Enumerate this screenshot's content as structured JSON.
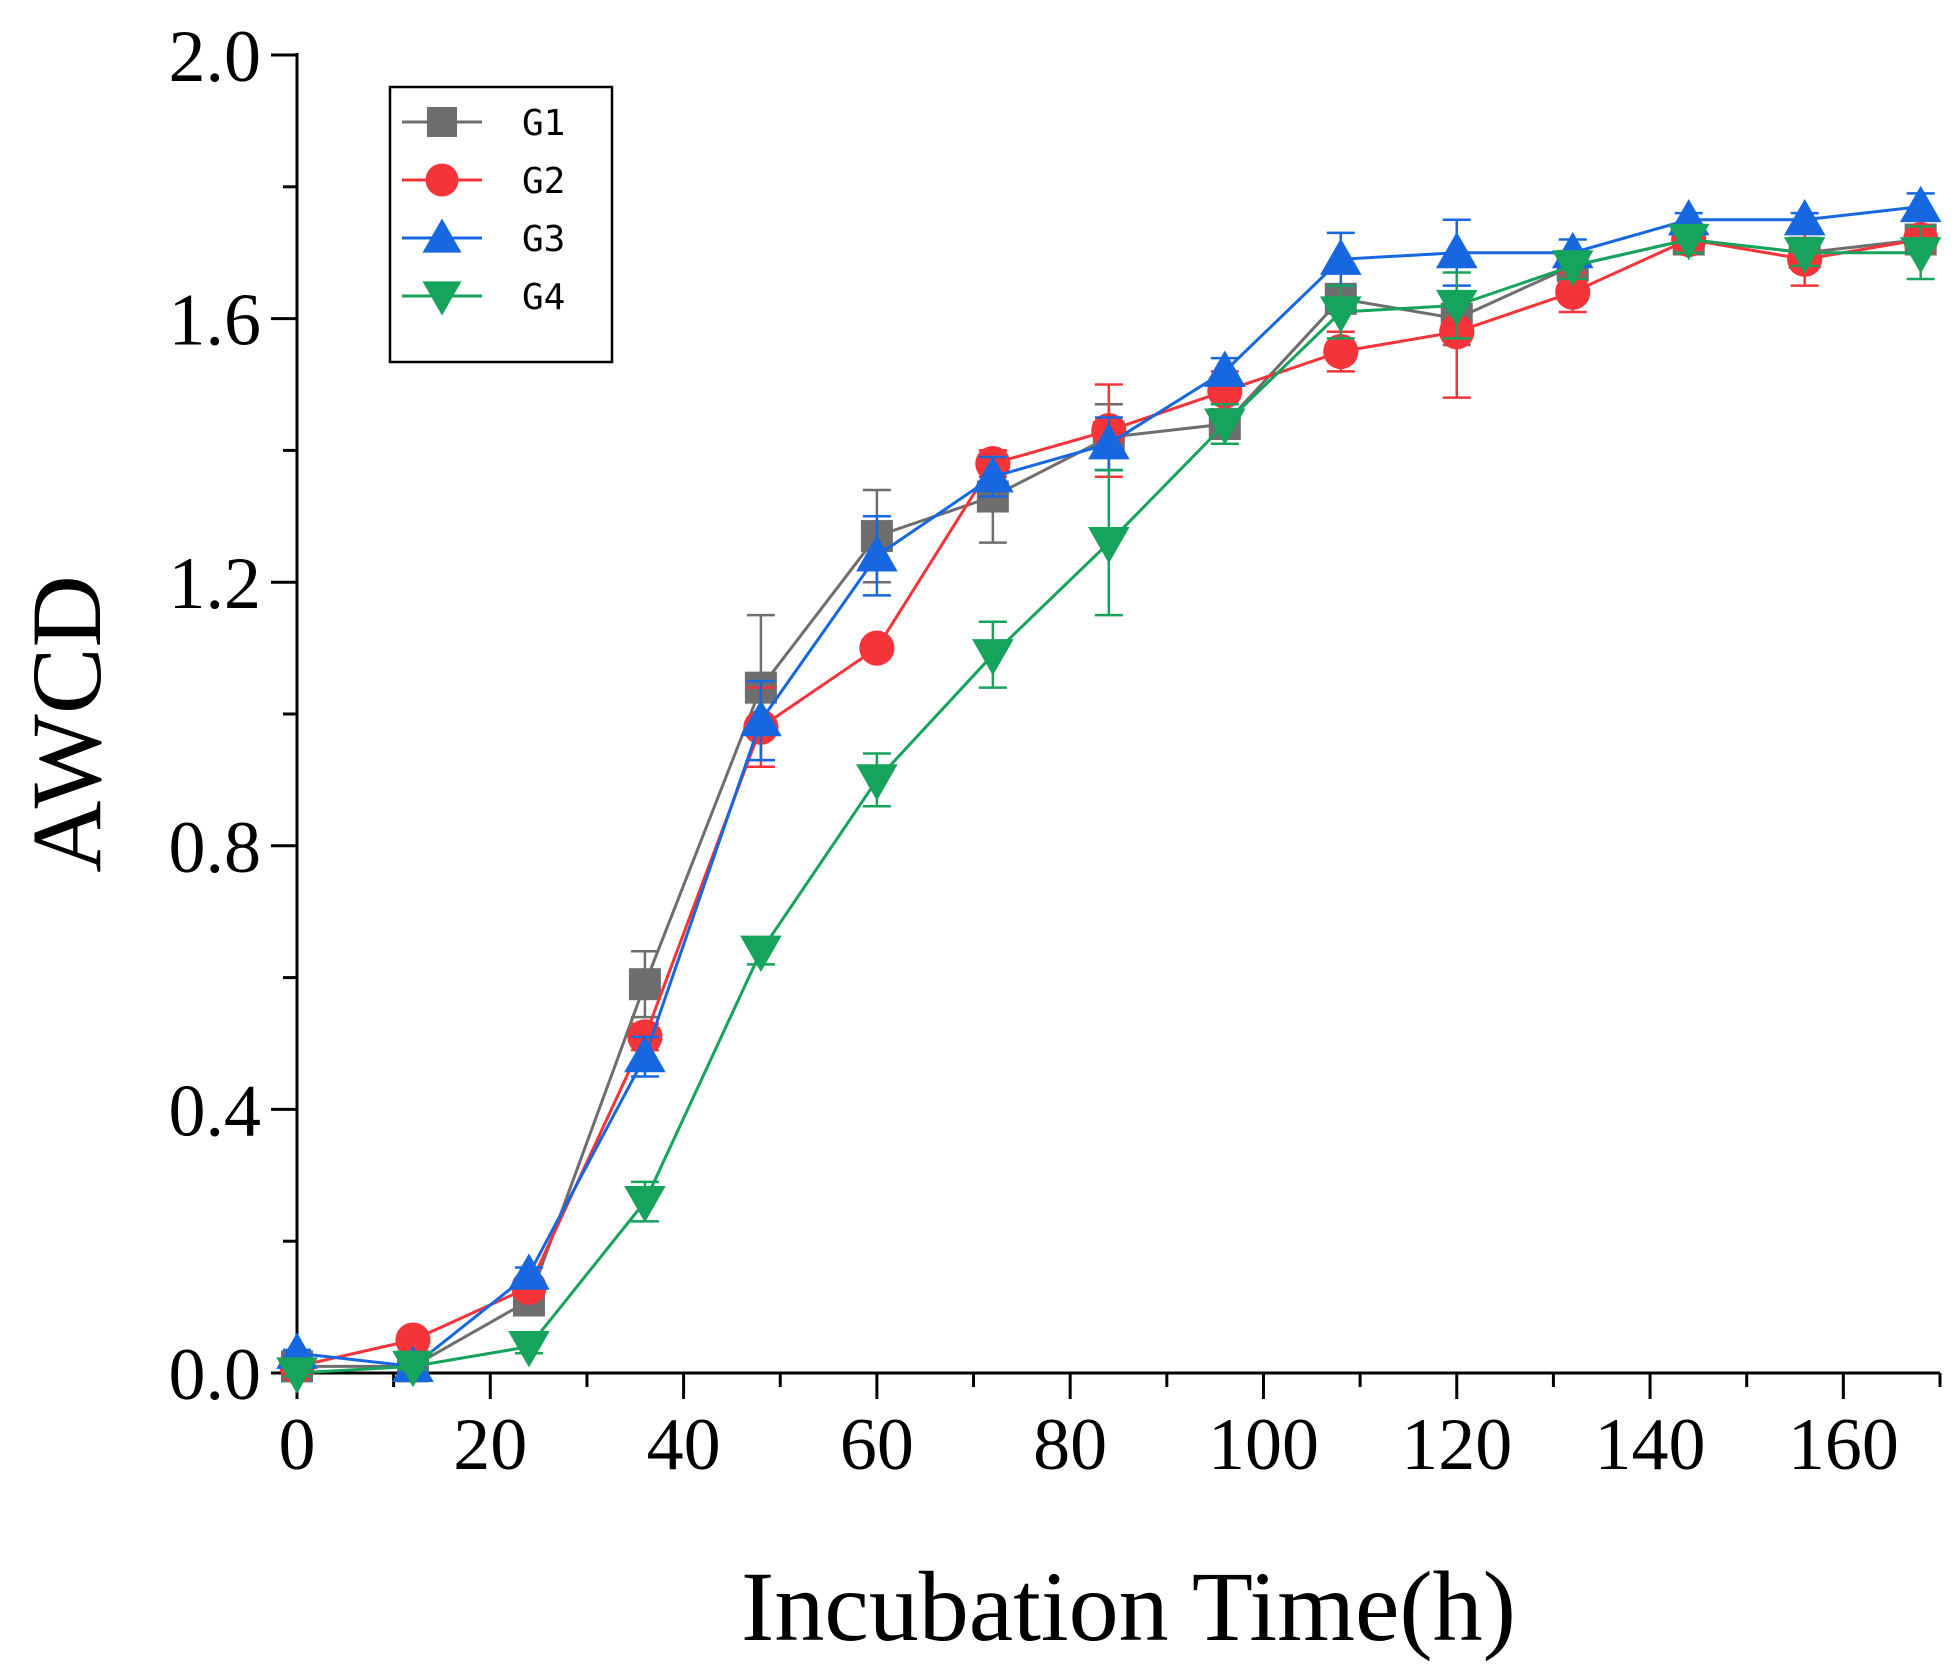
{
  "chart_data": {
    "type": "line",
    "title": "",
    "xlabel": "Incubation Time(h)",
    "ylabel": "AWCD",
    "xlim": [
      0,
      170
    ],
    "ylim": [
      0,
      2.0
    ],
    "xticks": [
      0,
      20,
      40,
      60,
      80,
      100,
      120,
      140,
      160
    ],
    "xtick_labels": [
      "0",
      "20",
      "40",
      "60",
      "80",
      "100",
      "120",
      "140",
      "160"
    ],
    "yticks": [
      0,
      0.4,
      0.8,
      1.2,
      1.6,
      2.0
    ],
    "ytick_labels": [
      "0.0",
      "0.4",
      "0.8",
      "1.2",
      "1.6",
      "2.0"
    ],
    "grid": false,
    "legend_position": "top-left",
    "x": [
      0,
      12,
      24,
      36,
      48,
      60,
      72,
      84,
      96,
      108,
      120,
      132,
      144,
      156,
      168
    ],
    "series": [
      {
        "name": "G1",
        "color": "#6e6e6e",
        "marker": "square",
        "values": [
          0.01,
          0.01,
          0.11,
          0.59,
          1.04,
          1.27,
          1.33,
          1.42,
          1.44,
          1.63,
          1.6,
          1.68,
          1.72,
          1.7,
          1.72
        ],
        "errors": [
          0.005,
          0.005,
          0.01,
          0.05,
          0.11,
          0.07,
          0.07,
          0.05,
          0.03,
          0.02,
          0.04,
          0.02,
          0.02,
          0.02,
          0.02
        ]
      },
      {
        "name": "G2",
        "color": "#f5343a",
        "marker": "circle",
        "values": [
          0.01,
          0.05,
          0.13,
          0.51,
          0.98,
          1.1,
          1.38,
          1.43,
          1.49,
          1.55,
          1.58,
          1.64,
          1.72,
          1.69,
          1.72
        ],
        "errors": [
          0.005,
          0.005,
          0.01,
          0.02,
          0.06,
          0.01,
          0.02,
          0.07,
          0.03,
          0.03,
          0.1,
          0.03,
          0.02,
          0.04,
          0.02
        ]
      },
      {
        "name": "G3",
        "color": "#1667e0",
        "marker": "triangle-up",
        "values": [
          0.03,
          0.01,
          0.15,
          0.48,
          0.99,
          1.24,
          1.36,
          1.41,
          1.52,
          1.69,
          1.7,
          1.7,
          1.75,
          1.75,
          1.77
        ],
        "errors": [
          0.005,
          0.005,
          0.01,
          0.03,
          0.06,
          0.06,
          0.03,
          0.04,
          0.02,
          0.04,
          0.05,
          0.02,
          0.01,
          0.01,
          0.02
        ]
      },
      {
        "name": "G4",
        "color": "#16a35c",
        "marker": "triangle-down",
        "values": [
          0.0,
          0.01,
          0.04,
          0.26,
          0.64,
          0.9,
          1.09,
          1.26,
          1.44,
          1.61,
          1.62,
          1.68,
          1.72,
          1.7,
          1.7
        ],
        "errors": [
          0.005,
          0.005,
          0.01,
          0.03,
          0.02,
          0.04,
          0.05,
          0.11,
          0.03,
          0.04,
          0.05,
          0.02,
          0.02,
          0.02,
          0.04
        ]
      }
    ]
  }
}
